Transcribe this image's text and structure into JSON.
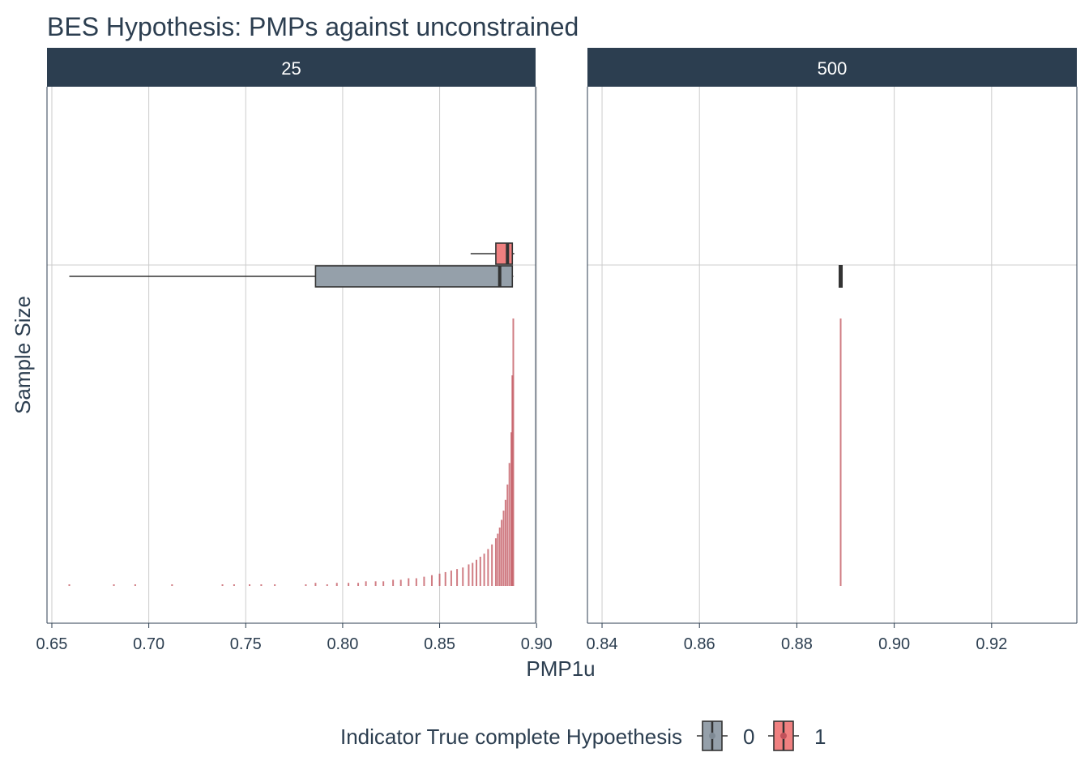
{
  "chart_data": {
    "type": "boxplot+histogram",
    "title": "BES Hypothesis: PMPs against unconstrained",
    "xlabel": "PMP1u",
    "ylabel": "Sample Size",
    "colors": {
      "group_0": "#95a0aa",
      "group_1": "#f08080",
      "histogram": "#c0505a",
      "strip": "#2c3e50",
      "grid": "#cccccc",
      "text": "#2c3e50"
    },
    "legend": {
      "title": "Indicator True complete Hypoethesis",
      "placement": "bottom",
      "entries": [
        "0",
        "1"
      ]
    },
    "panels": [
      {
        "strip": "25",
        "xlim": [
          0.6475,
          0.8995
        ],
        "xticks": [
          0.65,
          0.7,
          0.75,
          0.8,
          0.85,
          0.9
        ],
        "xtick_labels": [
          "0.65",
          "0.70",
          "0.75",
          "0.80",
          "0.85",
          "0.90"
        ],
        "boxes": [
          {
            "group": "1",
            "whisker_low": 0.866,
            "q1": 0.879,
            "median": 0.885,
            "q3": 0.8875,
            "whisker_high": 0.8885
          },
          {
            "group": "0",
            "whisker_low": 0.659,
            "q1": 0.786,
            "median": 0.881,
            "q3": 0.8875,
            "whisker_high": 0.888
          }
        ],
        "histogram": {
          "x": [
            0.659,
            0.682,
            0.693,
            0.712,
            0.738,
            0.744,
            0.752,
            0.758,
            0.765,
            0.781,
            0.786,
            0.792,
            0.797,
            0.803,
            0.808,
            0.812,
            0.817,
            0.821,
            0.826,
            0.83,
            0.834,
            0.838,
            0.842,
            0.846,
            0.85,
            0.853,
            0.856,
            0.859,
            0.862,
            0.865,
            0.867,
            0.869,
            0.871,
            0.873,
            0.875,
            0.877,
            0.879,
            0.88,
            0.881,
            0.882,
            0.883,
            0.884,
            0.885,
            0.886,
            0.887,
            0.8875,
            0.888
          ],
          "counts": [
            1,
            1,
            1,
            1,
            1,
            1,
            1,
            1,
            1,
            1,
            2,
            1,
            2,
            2,
            2,
            3,
            3,
            3,
            4,
            4,
            5,
            5,
            6,
            7,
            8,
            9,
            10,
            11,
            12,
            14,
            15,
            17,
            19,
            21,
            24,
            27,
            31,
            34,
            38,
            43,
            49,
            56,
            66,
            80,
            100,
            137,
            174
          ]
        }
      },
      {
        "strip": "500",
        "xlim": [
          0.837,
          0.9375
        ],
        "xticks": [
          0.84,
          0.86,
          0.88,
          0.9,
          0.92
        ],
        "xtick_labels": [
          "0.84",
          "0.86",
          "0.88",
          "0.90",
          "0.92"
        ],
        "boxes": [
          {
            "group": "0",
            "whisker_low": 0.889,
            "q1": 0.889,
            "median": 0.889,
            "q3": 0.889,
            "whisker_high": 0.889
          }
        ],
        "histogram": {
          "x": [
            0.889
          ],
          "counts": [
            174
          ]
        }
      }
    ]
  }
}
